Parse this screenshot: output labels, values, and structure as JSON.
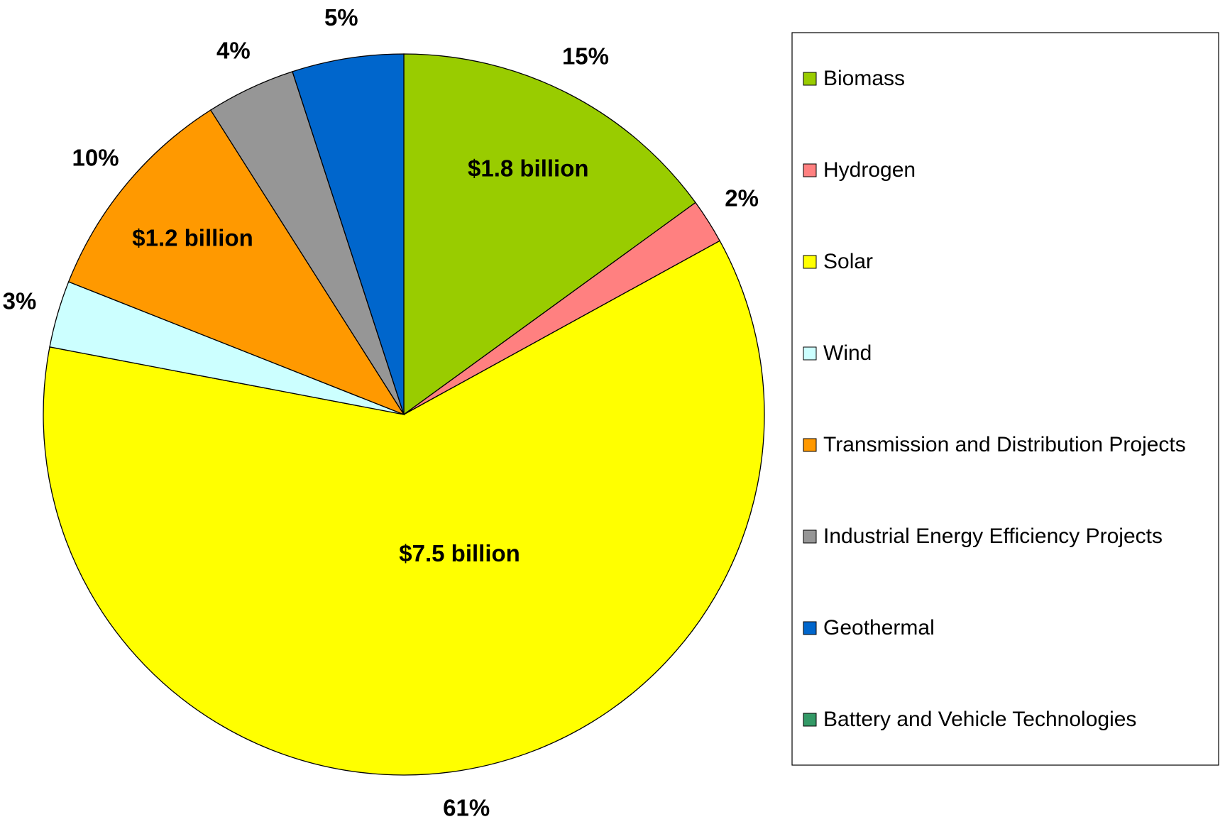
{
  "chart_data": {
    "type": "pie",
    "categories": [
      "Biomass",
      "Hydrogen",
      "Solar",
      "Wind",
      "Transmission and Distribution Projects",
      "Industrial Energy Efficiency Projects",
      "Geothermal",
      "Battery and Vehicle Technologies"
    ],
    "values": [
      15,
      2,
      61,
      3,
      10,
      4,
      5,
      0
    ],
    "value_labels": [
      "15%",
      "2%",
      "61%",
      "3%",
      "10%",
      "4%",
      "5%",
      null
    ],
    "amount_labels": [
      "$1.8 billion",
      null,
      "$7.5 billion",
      null,
      "$1.2 billion",
      null,
      null,
      null
    ],
    "colors": [
      "#99cc00",
      "#ff8080",
      "#ffff00",
      "#ccffff",
      "#ff9900",
      "#969696",
      "#0066cc",
      "#339966"
    ],
    "legend": "right"
  }
}
